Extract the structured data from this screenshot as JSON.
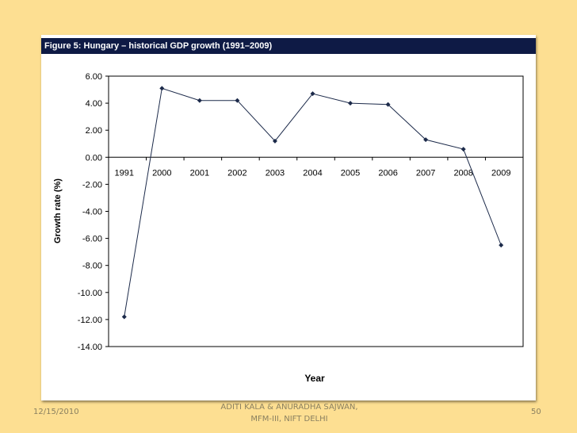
{
  "chart_data": {
    "type": "line",
    "title": "Figure 5:  Hungary – historical GDP growth (1991–2009)",
    "xlabel": "Year",
    "ylabel": "Growth rate (%)",
    "categories": [
      "1991",
      "2000",
      "2001",
      "2002",
      "2003",
      "2004",
      "2005",
      "2006",
      "2007",
      "2008",
      "2009"
    ],
    "values": [
      -11.8,
      5.1,
      4.2,
      4.2,
      1.2,
      4.7,
      4.0,
      3.9,
      1.3,
      0.6,
      -6.5
    ],
    "yticks": [
      "6.00",
      "4.00",
      "2.00",
      "0.00",
      "-2.00",
      "-4.00",
      "-6.00",
      "-8.00",
      "-10.00",
      "-12.00",
      "-14.00"
    ],
    "ylim": [
      -14,
      6
    ],
    "grid": false,
    "line_color": "#1c2a4a"
  },
  "footer": {
    "date": "12/15/2010",
    "author_line1": "ADITI KALA & ANURADHA SAJWAN,",
    "author_line2": "MFM-III, NIFT DELHI",
    "page": "50"
  }
}
